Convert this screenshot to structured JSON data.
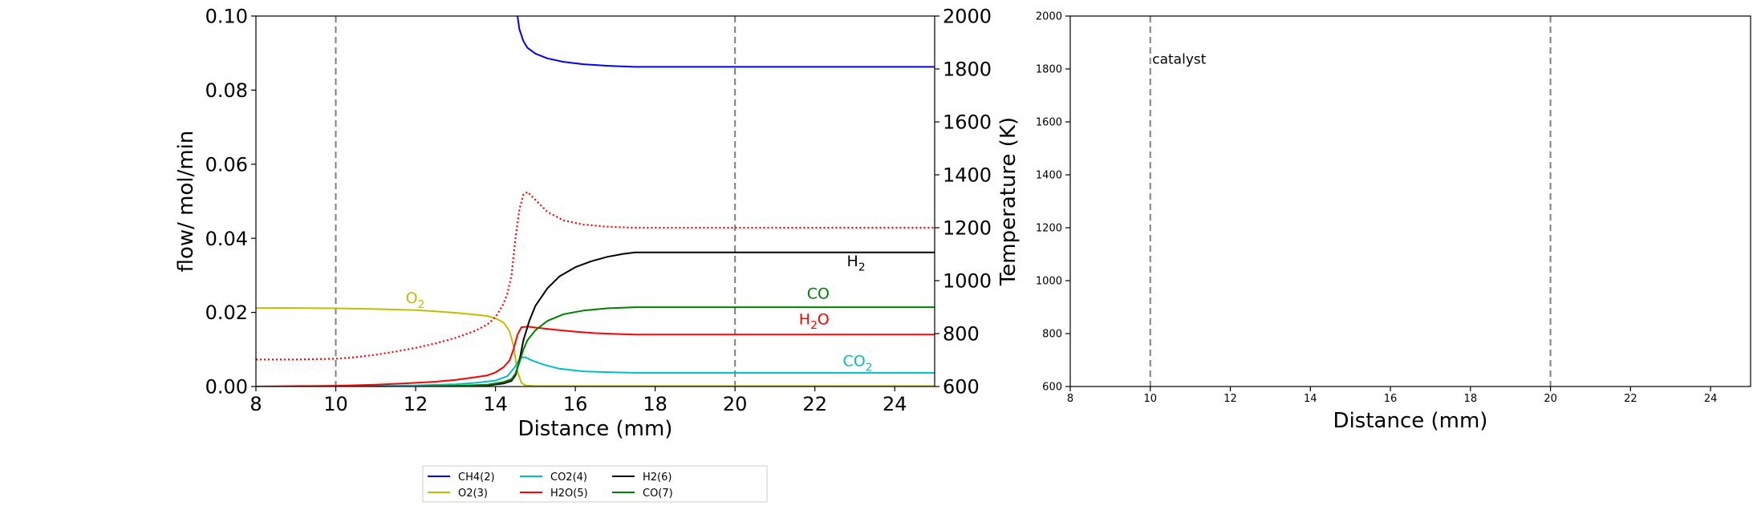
{
  "colors": {
    "CH4": "#0000ff",
    "O2": "#bfbf00",
    "CO2": "#00bfbf",
    "H2O": "#ff0000",
    "H2": "#000000",
    "CO": "#008000",
    "catalyst_line": "#808080"
  },
  "chart_data": [
    {
      "type": "line",
      "xlabel": "Distance (mm)",
      "ylabel": "flow/ mol/min",
      "y2label": "Temperature (K)",
      "xlim": [
        8,
        25
      ],
      "ylim": [
        0,
        0.1
      ],
      "y2lim": [
        600,
        2000
      ],
      "xticks": [
        "8",
        "10",
        "12",
        "14",
        "16",
        "18",
        "20",
        "22",
        "24"
      ],
      "yticks": [
        "0.00",
        "0.02",
        "0.04",
        "0.06",
        "0.08",
        "0.10"
      ],
      "y2ticks": [
        "600",
        "800",
        "1000",
        "1200",
        "1400",
        "1600",
        "1800",
        "2000"
      ],
      "vlines": [
        10,
        20
      ],
      "grid": false,
      "legend_position": "bottom-center",
      "series": [
        {
          "name": "CH4(2)",
          "key": "CH4",
          "axis": "y2",
          "style": "solid",
          "x": [
            14.55,
            14.6,
            14.7,
            14.8,
            15.0,
            15.3,
            15.7,
            16.2,
            16.8,
            17.5,
            18.5,
            20,
            22,
            25
          ],
          "y": [
            2000,
            1950,
            1905,
            1880,
            1858,
            1840,
            1827,
            1818,
            1812,
            1808,
            1808,
            1808,
            1808,
            1808
          ]
        },
        {
          "name": "O2(3)",
          "key": "O2",
          "axis": "y",
          "style": "solid",
          "x": [
            8,
            9,
            10,
            11,
            12,
            12.5,
            13,
            13.5,
            13.8,
            14.0,
            14.2,
            14.35,
            14.45,
            14.55,
            14.65,
            14.75,
            15,
            17.5,
            25
          ],
          "y": [
            0.0212,
            0.0212,
            0.0211,
            0.0209,
            0.0206,
            0.0203,
            0.0199,
            0.0194,
            0.019,
            0.0184,
            0.0173,
            0.015,
            0.011,
            0.004,
            0.001,
            0.0003,
            0.0001,
            0.0001,
            0.0001
          ]
        },
        {
          "name": "CO2(4)",
          "key": "CO2",
          "axis": "y",
          "style": "solid",
          "x": [
            8,
            10,
            12,
            13,
            13.5,
            14,
            14.3,
            14.5,
            14.62,
            14.75,
            14.9,
            15.2,
            15.6,
            16.2,
            17.0,
            17.5,
            18.5,
            20,
            25
          ],
          "y": [
            0.0,
            0.0,
            0.0003,
            0.0006,
            0.001,
            0.0016,
            0.0028,
            0.0055,
            0.0078,
            0.0079,
            0.0071,
            0.0059,
            0.0048,
            0.0041,
            0.0038,
            0.0037,
            0.0037,
            0.0037,
            0.0037
          ]
        },
        {
          "name": "H2O(5)",
          "key": "H2O",
          "axis": "y",
          "style": "solid",
          "x": [
            8,
            10,
            11,
            12,
            12.5,
            13,
            13.5,
            13.8,
            14.0,
            14.2,
            14.35,
            14.45,
            14.55,
            14.65,
            14.8,
            15.0,
            15.5,
            16,
            16.5,
            17.5,
            20,
            25
          ],
          "y": [
            0.0,
            0.0002,
            0.0005,
            0.001,
            0.0013,
            0.0018,
            0.0025,
            0.003,
            0.0038,
            0.0052,
            0.007,
            0.01,
            0.014,
            0.016,
            0.0162,
            0.0159,
            0.0153,
            0.0148,
            0.0144,
            0.014,
            0.014,
            0.014
          ]
        },
        {
          "name": "H2(6)",
          "key": "H2",
          "axis": "y",
          "style": "solid",
          "x": [
            8,
            10,
            12,
            13,
            13.8,
            14.2,
            14.4,
            14.5,
            14.6,
            14.7,
            14.85,
            15.0,
            15.3,
            15.6,
            16.0,
            16.4,
            16.8,
            17.2,
            17.5,
            20,
            25
          ],
          "y": [
            0.0,
            0.0,
            0.0,
            0.0001,
            0.0003,
            0.0008,
            0.0015,
            0.003,
            0.007,
            0.0125,
            0.0178,
            0.0218,
            0.0265,
            0.0297,
            0.0322,
            0.0338,
            0.035,
            0.0358,
            0.0362,
            0.0362,
            0.0362
          ]
        },
        {
          "name": "CO(7)",
          "key": "CO",
          "axis": "y",
          "style": "solid",
          "x": [
            8,
            10,
            12,
            13,
            13.8,
            14.2,
            14.4,
            14.5,
            14.6,
            14.7,
            14.8,
            15.0,
            15.3,
            15.7,
            16.2,
            16.8,
            17.5,
            20,
            25
          ],
          "y": [
            0.0,
            0.0,
            0.0,
            0.0002,
            0.0005,
            0.0012,
            0.002,
            0.0035,
            0.0065,
            0.01,
            0.0125,
            0.0152,
            0.0177,
            0.0195,
            0.0205,
            0.0211,
            0.0214,
            0.0214,
            0.0214
          ]
        },
        {
          "name": "Temperature",
          "key": "H2O",
          "axis": "y2",
          "style": "dotted",
          "in_legend": false,
          "x": [
            8,
            9,
            10,
            10.5,
            11,
            11.5,
            12,
            12.5,
            13,
            13.5,
            13.8,
            14.0,
            14.2,
            14.3,
            14.4,
            14.5,
            14.6,
            14.7,
            14.8,
            15.0,
            15.3,
            15.7,
            16.2,
            16.8,
            17.5,
            20,
            25
          ],
          "y": [
            702,
            702,
            705,
            711,
            720,
            732,
            746,
            763,
            784,
            811,
            835,
            862,
            912,
            952,
            1020,
            1160,
            1270,
            1325,
            1335,
            1305,
            1260,
            1228,
            1212,
            1204,
            1200,
            1200,
            1200
          ]
        }
      ],
      "annotations": [
        {
          "text": "H",
          "sub": "2",
          "key": "H2",
          "x": 22.8,
          "y": 0.0325
        },
        {
          "text": "CO",
          "key": "CO",
          "x": 21.8,
          "y": 0.0237
        },
        {
          "text": "H",
          "sub": "2",
          "post": "O",
          "key": "H2O",
          "x": 21.6,
          "y": 0.0168
        },
        {
          "text": "O",
          "sub": "2",
          "key": "O2",
          "x": 11.75,
          "y": 0.0225
        },
        {
          "text": "CO",
          "sub": "2",
          "key": "CO2",
          "x": 22.7,
          "y": 0.0055
        }
      ]
    },
    {
      "type": "line",
      "xlabel": "Distance (mm)",
      "xlim": [
        8,
        25
      ],
      "ylim": [
        600,
        2000
      ],
      "xticks": [
        "8",
        "10",
        "12",
        "14",
        "16",
        "18",
        "20",
        "22",
        "24"
      ],
      "yticks": [
        "600",
        "800",
        "1000",
        "1200",
        "1400",
        "1600",
        "1800",
        "2000"
      ],
      "vlines": [
        10,
        20
      ],
      "grid": false,
      "annotations": [
        {
          "text": "catalyst",
          "x": 10.05,
          "y": 1820
        }
      ],
      "series": []
    }
  ]
}
